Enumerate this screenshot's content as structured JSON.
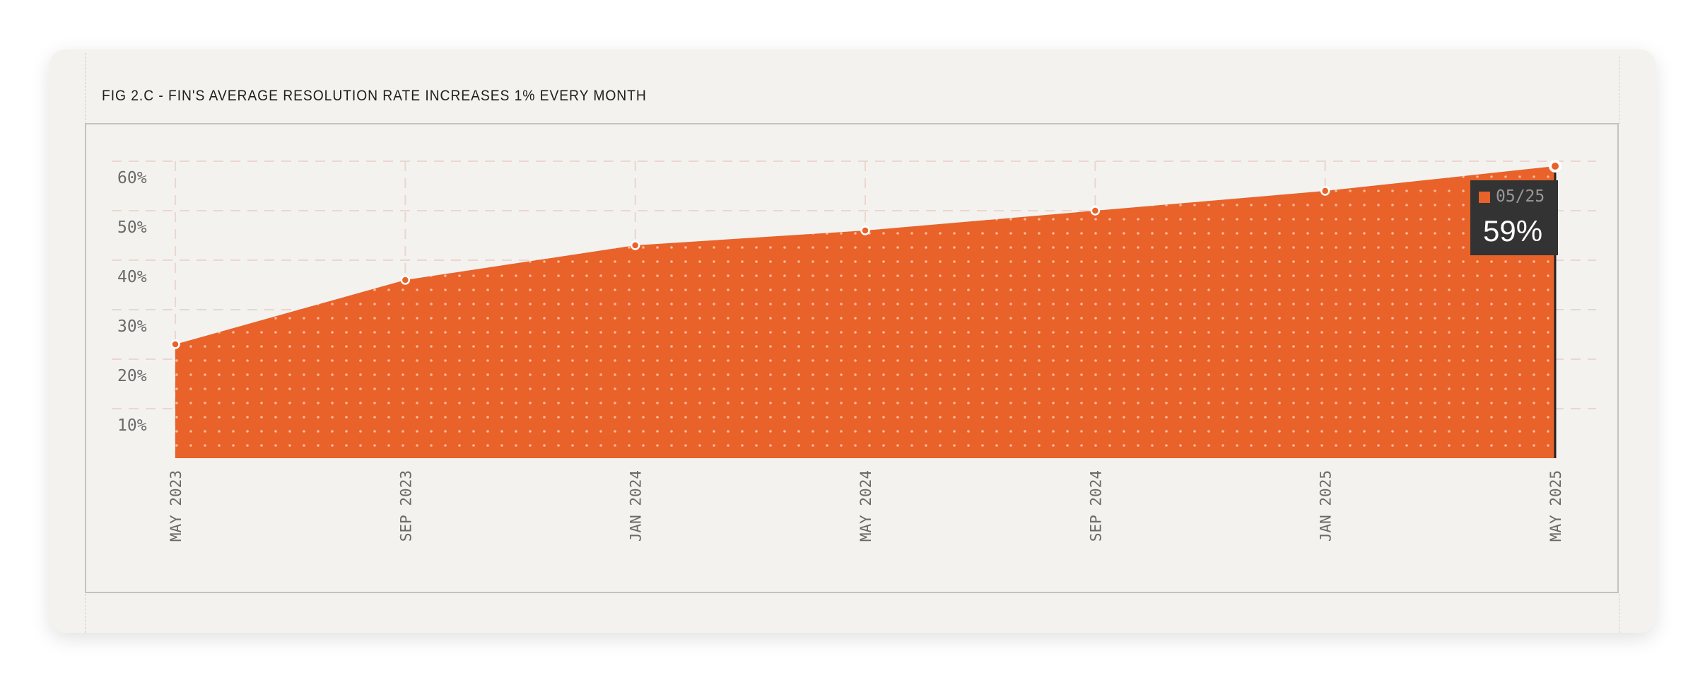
{
  "colors": {
    "accent": "#e8622a",
    "grid": "#ecd6d0",
    "text": "#6a6a6a"
  },
  "chart_data": {
    "type": "area",
    "title": "FIG 2.C - FIN'S AVERAGE RESOLUTION RATE INCREASES 1% EVERY MONTH",
    "categories": [
      "MAY 2023",
      "SEP 2023",
      "JAN 2024",
      "MAY 2024",
      "SEP 2024",
      "JAN 2025",
      "MAY 2025"
    ],
    "values": [
      23,
      36,
      43,
      46,
      50,
      54,
      59
    ],
    "yticks": [
      "10%",
      "20%",
      "30%",
      "40%",
      "50%",
      "60%"
    ],
    "ylim": [
      0,
      60
    ],
    "grid": true,
    "tooltip": {
      "date": "05/25",
      "value": "59%"
    }
  }
}
